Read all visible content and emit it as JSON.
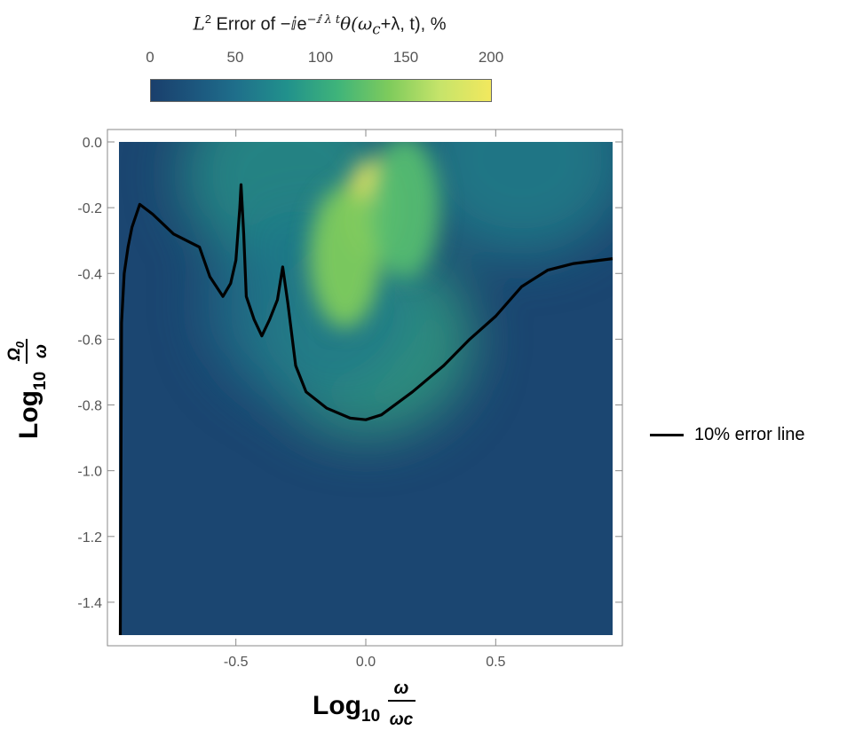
{
  "colorbar": {
    "title_prefix": "L",
    "title_sup": "2",
    "title_text": " Error of −ⅈe",
    "title_exp": "−ⅈ λ t",
    "title_suffix": "θ(ω",
    "title_sub": "c",
    "title_end": "+λ, t), %",
    "ticks": [
      "0",
      "50",
      "100",
      "150",
      "200"
    ],
    "range": [
      0,
      200
    ]
  },
  "chart_data": {
    "type": "heatmap",
    "xlabel_main": "Log",
    "xlabel_sub": "10",
    "xlabel_num": "ω",
    "xlabel_den": "ωc",
    "ylabel_main": "Log",
    "ylabel_sub": "10",
    "ylabel_num": "Ω",
    "ylabel_num_sub": "0",
    "ylabel_den": "ω",
    "xlim": [
      -0.95,
      0.95
    ],
    "ylim": [
      -1.5,
      0.0
    ],
    "x_ticks": [
      "-0.5",
      "0.0",
      "0.5"
    ],
    "x_tick_values": [
      -0.5,
      0.0,
      0.5
    ],
    "y_ticks": [
      "0.0",
      "-0.2",
      "-0.4",
      "-0.6",
      "-0.8",
      "-1.0",
      "-1.2",
      "-1.4"
    ],
    "y_tick_values": [
      0.0,
      -0.2,
      -0.4,
      -0.6,
      -0.8,
      -1.0,
      -1.2,
      -1.4
    ],
    "heat_features": [
      {
        "x": 0.02,
        "y": -0.2,
        "value": 195
      },
      {
        "x": -0.08,
        "y": -0.35,
        "value": 140
      },
      {
        "x": 0.15,
        "y": -0.2,
        "value": 120
      },
      {
        "x": -0.3,
        "y": -0.1,
        "value": 85
      },
      {
        "x": 0.6,
        "y": -0.05,
        "value": 70
      },
      {
        "x": 0.0,
        "y": -0.6,
        "value": 100
      },
      {
        "x": -0.2,
        "y": -0.5,
        "value": 55
      }
    ],
    "series": [
      {
        "name": "10% error line",
        "points": [
          [
            -0.945,
            -1.5
          ],
          [
            -0.94,
            -0.55
          ],
          [
            -0.93,
            -0.4
          ],
          [
            -0.915,
            -0.32
          ],
          [
            -0.9,
            -0.26
          ],
          [
            -0.87,
            -0.19
          ],
          [
            -0.82,
            -0.22
          ],
          [
            -0.74,
            -0.28
          ],
          [
            -0.64,
            -0.32
          ],
          [
            -0.6,
            -0.41
          ],
          [
            -0.55,
            -0.47
          ],
          [
            -0.52,
            -0.43
          ],
          [
            -0.5,
            -0.36
          ],
          [
            -0.485,
            -0.2
          ],
          [
            -0.48,
            -0.13
          ],
          [
            -0.47,
            -0.28
          ],
          [
            -0.46,
            -0.47
          ],
          [
            -0.43,
            -0.54
          ],
          [
            -0.4,
            -0.59
          ],
          [
            -0.37,
            -0.54
          ],
          [
            -0.34,
            -0.48
          ],
          [
            -0.32,
            -0.38
          ],
          [
            -0.3,
            -0.49
          ],
          [
            -0.27,
            -0.68
          ],
          [
            -0.23,
            -0.76
          ],
          [
            -0.15,
            -0.81
          ],
          [
            -0.06,
            -0.84
          ],
          [
            0.0,
            -0.845
          ],
          [
            0.06,
            -0.83
          ],
          [
            0.18,
            -0.76
          ],
          [
            0.3,
            -0.68
          ],
          [
            0.4,
            -0.6
          ],
          [
            0.5,
            -0.53
          ],
          [
            0.6,
            -0.44
          ],
          [
            0.7,
            -0.39
          ],
          [
            0.8,
            -0.37
          ],
          [
            0.95,
            -0.355
          ]
        ]
      }
    ],
    "legend": "right"
  }
}
